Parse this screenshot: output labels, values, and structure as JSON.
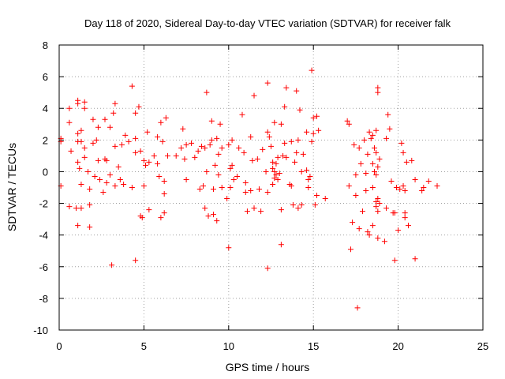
{
  "chart_data": {
    "type": "scatter",
    "title": "Day 118 of 2020, Sidereal Day-to-day VTEC variation (SDTVAR) for receiver falk",
    "xlabel": "GPS time / hours",
    "ylabel": "SDTVAR / TECUs",
    "xlim": [
      0,
      25
    ],
    "ylim": [
      -10,
      8
    ],
    "xticks": [
      0,
      5,
      10,
      15,
      20,
      25
    ],
    "yticks": [
      -10,
      -8,
      -6,
      -4,
      -2,
      0,
      2,
      4,
      6,
      8
    ],
    "xtick_labels": [
      "0",
      "5",
      "10",
      "15",
      "20",
      "25"
    ],
    "ytick_labels": [
      "-10",
      "-8",
      "-6",
      "-4",
      "-2",
      "0",
      "2",
      "4",
      "6",
      "8"
    ],
    "grid": true,
    "marker": "plus",
    "color": "#ff0000",
    "series": [
      {
        "name": "SDTVAR",
        "points": [
          [
            0.1,
            2.1
          ],
          [
            0.1,
            1.9
          ],
          [
            0.1,
            -0.9
          ],
          [
            0.6,
            4.0
          ],
          [
            0.6,
            3.1
          ],
          [
            0.6,
            -2.2
          ],
          [
            0.7,
            1.3
          ],
          [
            1.0,
            -2.3
          ],
          [
            1.1,
            4.5
          ],
          [
            1.1,
            4.3
          ],
          [
            1.1,
            2.4
          ],
          [
            1.1,
            1.9
          ],
          [
            1.1,
            0.6
          ],
          [
            1.1,
            -3.4
          ],
          [
            1.2,
            0.2
          ],
          [
            1.3,
            2.6
          ],
          [
            1.3,
            1.9
          ],
          [
            1.3,
            -0.8
          ],
          [
            1.3,
            -2.3
          ],
          [
            1.5,
            4.4
          ],
          [
            1.5,
            4.0
          ],
          [
            1.5,
            1.5
          ],
          [
            1.5,
            0.9
          ],
          [
            1.7,
            0.0
          ],
          [
            1.8,
            -1.1
          ],
          [
            1.8,
            -2.1
          ],
          [
            1.8,
            -3.5
          ],
          [
            2.0,
            3.3
          ],
          [
            2.0,
            1.8
          ],
          [
            2.1,
            -0.3
          ],
          [
            2.2,
            2.0
          ],
          [
            2.3,
            2.8
          ],
          [
            2.3,
            0.7
          ],
          [
            2.4,
            -0.5
          ],
          [
            2.6,
            -1.3
          ],
          [
            2.7,
            3.3
          ],
          [
            2.7,
            0.8
          ],
          [
            2.8,
            0.7
          ],
          [
            2.8,
            -0.7
          ],
          [
            3.0,
            2.8
          ],
          [
            3.0,
            -0.2
          ],
          [
            3.1,
            -5.9
          ],
          [
            3.2,
            3.7
          ],
          [
            3.3,
            4.3
          ],
          [
            3.3,
            1.6
          ],
          [
            3.3,
            -0.9
          ],
          [
            3.5,
            0.3
          ],
          [
            3.6,
            -0.5
          ],
          [
            3.7,
            1.7
          ],
          [
            3.8,
            -0.8
          ],
          [
            3.9,
            2.3
          ],
          [
            4.1,
            1.9
          ],
          [
            4.3,
            5.4
          ],
          [
            4.3,
            -1.0
          ],
          [
            4.5,
            3.7
          ],
          [
            4.5,
            2.1
          ],
          [
            4.5,
            1.2
          ],
          [
            4.5,
            -5.6
          ],
          [
            4.7,
            4.1
          ],
          [
            4.8,
            1.3
          ],
          [
            4.8,
            -2.8
          ],
          [
            4.9,
            -2.9
          ],
          [
            5.0,
            0.7
          ],
          [
            5.0,
            -0.9
          ],
          [
            5.1,
            0.4
          ],
          [
            5.2,
            2.5
          ],
          [
            5.3,
            -2.4
          ],
          [
            5.3,
            0.6
          ],
          [
            5.6,
            1.0
          ],
          [
            5.8,
            2.2
          ],
          [
            5.8,
            0.5
          ],
          [
            5.9,
            -0.3
          ],
          [
            6.0,
            -2.9
          ],
          [
            6.0,
            3.1
          ],
          [
            6.1,
            1.9
          ],
          [
            6.2,
            -1.4
          ],
          [
            6.2,
            -0.6
          ],
          [
            6.2,
            -2.6
          ],
          [
            6.3,
            3.4
          ],
          [
            6.4,
            1.0
          ],
          [
            6.9,
            1.0
          ],
          [
            7.2,
            1.5
          ],
          [
            7.3,
            2.7
          ],
          [
            7.4,
            0.8
          ],
          [
            7.5,
            -0.5
          ],
          [
            7.5,
            1.7
          ],
          [
            7.8,
            1.8
          ],
          [
            8.0,
            0.9
          ],
          [
            8.2,
            1.3
          ],
          [
            8.3,
            -1.1
          ],
          [
            8.4,
            1.6
          ],
          [
            8.5,
            -0.9
          ],
          [
            8.6,
            1.5
          ],
          [
            8.6,
            -2.3
          ],
          [
            8.7,
            5.0
          ],
          [
            8.7,
            0.0
          ],
          [
            8.8,
            -2.8
          ],
          [
            8.9,
            1.7
          ],
          [
            9.0,
            3.2
          ],
          [
            9.0,
            2.0
          ],
          [
            9.1,
            -1.1
          ],
          [
            9.1,
            -2.7
          ],
          [
            9.2,
            0.4
          ],
          [
            9.3,
            -3.1
          ],
          [
            9.3,
            2.1
          ],
          [
            9.4,
            -0.2
          ],
          [
            9.4,
            1.1
          ],
          [
            9.5,
            3.0
          ],
          [
            9.6,
            1.5
          ],
          [
            9.6,
            -1.0
          ],
          [
            9.9,
            -1.7
          ],
          [
            10.0,
            -4.8
          ],
          [
            10.0,
            1.7
          ],
          [
            10.1,
            0.2
          ],
          [
            10.1,
            -1.0
          ],
          [
            10.2,
            2.0
          ],
          [
            10.2,
            0.4
          ],
          [
            10.3,
            -0.5
          ],
          [
            10.5,
            -0.3
          ],
          [
            10.6,
            1.5
          ],
          [
            10.8,
            3.6
          ],
          [
            10.9,
            1.2
          ],
          [
            11.0,
            -1.3
          ],
          [
            11.0,
            -0.7
          ],
          [
            11.1,
            -2.5
          ],
          [
            11.3,
            2.2
          ],
          [
            11.3,
            -1.2
          ],
          [
            11.4,
            0.7
          ],
          [
            11.5,
            -2.3
          ],
          [
            11.5,
            4.8
          ],
          [
            11.7,
            0.8
          ],
          [
            11.8,
            -1.1
          ],
          [
            11.9,
            -2.5
          ],
          [
            12.0,
            1.4
          ],
          [
            12.2,
            0.0
          ],
          [
            12.3,
            5.6
          ],
          [
            12.3,
            2.5
          ],
          [
            12.3,
            -1.3
          ],
          [
            12.3,
            -6.1
          ],
          [
            12.4,
            2.2
          ],
          [
            12.5,
            1.6
          ],
          [
            12.6,
            -0.8
          ],
          [
            12.6,
            0.6
          ],
          [
            12.6,
            0.2
          ],
          [
            12.7,
            -0.4
          ],
          [
            12.7,
            3.1
          ],
          [
            12.7,
            0.0
          ],
          [
            12.8,
            -0.2
          ],
          [
            12.8,
            0.5
          ],
          [
            12.9,
            -0.5
          ],
          [
            12.9,
            0.9
          ],
          [
            13.0,
            -0.1
          ],
          [
            13.1,
            3.0
          ],
          [
            13.1,
            -2.4
          ],
          [
            13.1,
            -4.6
          ],
          [
            13.2,
            1.0
          ],
          [
            13.3,
            1.8
          ],
          [
            13.3,
            4.1
          ],
          [
            13.4,
            5.3
          ],
          [
            13.4,
            0.9
          ],
          [
            13.6,
            -0.8
          ],
          [
            13.7,
            -0.9
          ],
          [
            13.7,
            1.9
          ],
          [
            13.8,
            -2.1
          ],
          [
            13.9,
            0.6
          ],
          [
            14.0,
            5.1
          ],
          [
            14.0,
            1.2
          ],
          [
            14.1,
            2.0
          ],
          [
            14.1,
            -2.3
          ],
          [
            14.2,
            3.9
          ],
          [
            14.3,
            0.0
          ],
          [
            14.3,
            -2.1
          ],
          [
            14.4,
            1.1
          ],
          [
            14.6,
            2.5
          ],
          [
            14.6,
            0.1
          ],
          [
            14.7,
            -1.0
          ],
          [
            14.7,
            -0.5
          ],
          [
            14.8,
            -0.3
          ],
          [
            14.9,
            6.4
          ],
          [
            14.9,
            1.9
          ],
          [
            15.0,
            3.4
          ],
          [
            15.0,
            2.4
          ],
          [
            15.1,
            -2.1
          ],
          [
            15.2,
            -1.5
          ],
          [
            15.2,
            3.5
          ],
          [
            15.3,
            2.6
          ],
          [
            15.7,
            -1.7
          ],
          [
            17.0,
            3.2
          ],
          [
            17.1,
            3.0
          ],
          [
            17.1,
            -0.9
          ],
          [
            17.2,
            -4.9
          ],
          [
            17.3,
            -3.2
          ],
          [
            17.4,
            1.7
          ],
          [
            17.5,
            -0.2
          ],
          [
            17.5,
            -1.5
          ],
          [
            17.6,
            -8.6
          ],
          [
            17.7,
            1.5
          ],
          [
            17.7,
            -3.6
          ],
          [
            17.8,
            0.5
          ],
          [
            17.9,
            -2.5
          ],
          [
            18.0,
            2.0
          ],
          [
            18.1,
            -0.1
          ],
          [
            18.1,
            -1.2
          ],
          [
            18.2,
            1.1
          ],
          [
            18.2,
            -3.8
          ],
          [
            18.3,
            2.5
          ],
          [
            18.3,
            -4.0
          ],
          [
            18.4,
            2.1
          ],
          [
            18.5,
            2.3
          ],
          [
            18.5,
            0.5
          ],
          [
            18.5,
            -1.0
          ],
          [
            18.5,
            -3.4
          ],
          [
            18.6,
            1.5
          ],
          [
            18.6,
            0.0
          ],
          [
            18.7,
            2.6
          ],
          [
            18.7,
            1.2
          ],
          [
            18.7,
            -0.2
          ],
          [
            18.7,
            -1.9
          ],
          [
            18.7,
            -2.2
          ],
          [
            18.8,
            5.3
          ],
          [
            18.8,
            5.0
          ],
          [
            18.8,
            0.3
          ],
          [
            18.8,
            -1.7
          ],
          [
            18.8,
            -2.5
          ],
          [
            18.8,
            -4.2
          ],
          [
            18.9,
            0.8
          ],
          [
            18.9,
            -2.0
          ],
          [
            19.2,
            -4.4
          ],
          [
            19.3,
            2.1
          ],
          [
            19.3,
            -2.3
          ],
          [
            19.4,
            3.6
          ],
          [
            19.5,
            2.7
          ],
          [
            19.6,
            -0.6
          ],
          [
            19.7,
            -2.6
          ],
          [
            19.8,
            -5.6
          ],
          [
            19.8,
            -2.6
          ],
          [
            19.9,
            -1.0
          ],
          [
            20.0,
            -3.7
          ],
          [
            20.1,
            -1.1
          ],
          [
            20.2,
            1.8
          ],
          [
            20.3,
            -0.9
          ],
          [
            20.3,
            1.2
          ],
          [
            20.4,
            -1.2
          ],
          [
            20.4,
            -2.9
          ],
          [
            20.4,
            -2.6
          ],
          [
            20.5,
            0.6
          ],
          [
            20.6,
            -3.4
          ],
          [
            20.8,
            0.7
          ],
          [
            21.0,
            -0.5
          ],
          [
            21.0,
            -5.5
          ],
          [
            21.4,
            -1.2
          ],
          [
            21.5,
            -1.0
          ],
          [
            21.8,
            -0.6
          ],
          [
            22.3,
            -0.9
          ]
        ]
      }
    ]
  }
}
